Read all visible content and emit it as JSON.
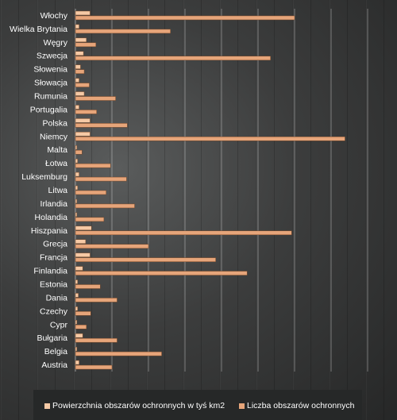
{
  "chart_data": {
    "type": "bar",
    "orientation": "horizontal",
    "categories": [
      "Włochy",
      "Wielka Brytania",
      "Węgry",
      "Szwecja",
      "Słowenia",
      "Słowacja",
      "Rumunia",
      "Portugalia",
      "Polska",
      "Niemcy",
      "Malta",
      "Łotwa",
      "Luksemburg",
      "Litwa",
      "Irlandia",
      "Holandia",
      "Hiszpania",
      "Grecja",
      "Francja",
      "Finlandia",
      "Estonia",
      "Dania",
      "Czechy",
      "Cypr",
      "Bułgaria",
      "Belgia",
      "Austria"
    ],
    "series": [
      {
        "name": "Powierzchnia obszarów ochronnych w tyś km2",
        "color": "#f5c9a5",
        "values": [
          20,
          5,
          15,
          11,
          7,
          5,
          12,
          5,
          20,
          20,
          2,
          3,
          5,
          3,
          2,
          2,
          22,
          14,
          20,
          10,
          3,
          4,
          3,
          2,
          10,
          2,
          5
        ]
      },
      {
        "name": "Liczba obszarów ochronnych",
        "color": "#e6a57a",
        "values": [
          300,
          130,
          28,
          267,
          12,
          19,
          55,
          29,
          71,
          369,
          9,
          48,
          70,
          42,
          81,
          39,
          296,
          100,
          192,
          235,
          34,
          57,
          21,
          15,
          57,
          118,
          50
        ]
      }
    ],
    "xlim": [
      0,
      400
    ],
    "grid": true,
    "legend": "bottom"
  }
}
